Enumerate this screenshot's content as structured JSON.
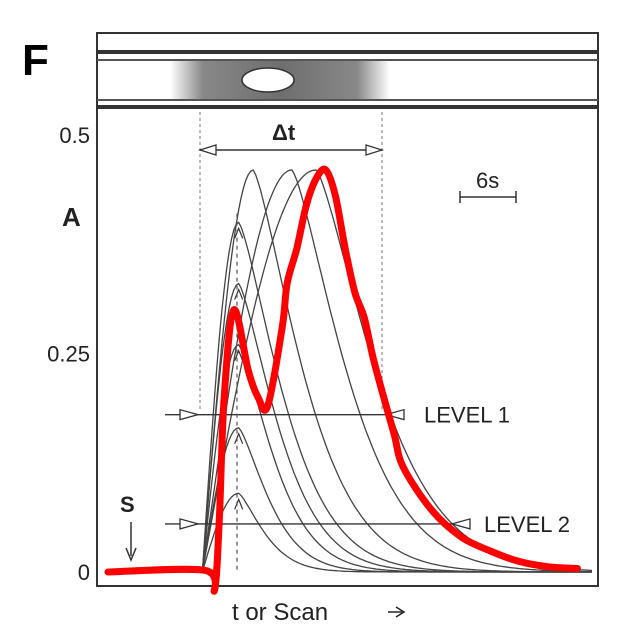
{
  "panel_label": "F",
  "chart_data": {
    "type": "line",
    "title": "",
    "xlabel": "t or Scan",
    "ylabel": "A",
    "y_tick_labels": [
      "0",
      "0.25",
      "0.5"
    ],
    "y_ticks": [
      0,
      0.25,
      0.5
    ],
    "ylim": [
      -0.02,
      0.55
    ],
    "xlim": [
      0,
      100
    ],
    "grid": false,
    "annotations": {
      "delta_t": "Δt",
      "scale_bar": "6s",
      "start_marker": "S",
      "level1": "LEVEL 1",
      "level2": "LEVEL 2"
    },
    "levels": [
      {
        "name": "LEVEL 1",
        "y": 0.18
      },
      {
        "name": "LEVEL 2",
        "y": 0.055
      }
    ],
    "gray_peaks": [
      {
        "peak_x": 27,
        "peak_y": 0.09
      },
      {
        "peak_x": 27,
        "peak_y": 0.165
      },
      {
        "peak_x": 27,
        "peak_y": 0.26
      },
      {
        "peak_x": 27,
        "peak_y": 0.33
      },
      {
        "peak_x": 27,
        "peak_y": 0.4
      },
      {
        "peak_x": 30,
        "peak_y": 0.46
      },
      {
        "peak_x": 38,
        "peak_y": 0.46
      },
      {
        "peak_x": 43,
        "peak_y": 0.46
      }
    ],
    "series": [
      {
        "color": "#ff0000",
        "x": [
          0,
          20,
          22,
          23,
          24,
          26,
          29,
          31,
          33,
          36,
          37,
          39,
          41,
          43,
          45,
          47,
          49,
          51,
          53,
          55,
          59,
          61,
          67,
          73,
          79,
          85,
          91,
          97
        ],
        "y": [
          0,
          0.002,
          -0.02,
          0.06,
          0.2,
          0.3,
          0.23,
          0.2,
          0.19,
          0.28,
          0.33,
          0.37,
          0.42,
          0.45,
          0.46,
          0.43,
          0.37,
          0.32,
          0.29,
          0.24,
          0.16,
          0.12,
          0.07,
          0.04,
          0.024,
          0.012,
          0.006,
          0.004
        ]
      }
    ]
  }
}
